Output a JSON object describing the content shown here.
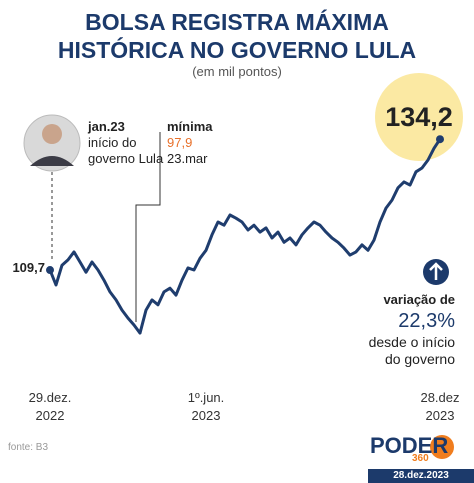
{
  "chart_data": {
    "type": "line",
    "title": "BOLSA REGISTRA MÁXIMA\nHISTÓRICA NO GOVERNO LULA",
    "subtitle": "(em mil pontos)",
    "categories": [
      "29.dez.\n2022",
      null,
      null,
      null,
      null,
      null,
      null,
      null,
      null,
      null,
      null,
      null,
      null,
      null,
      null,
      null,
      null,
      null,
      null,
      null,
      null,
      null,
      null,
      null,
      null,
      null,
      "1º.jun.\n2023",
      null,
      null,
      null,
      null,
      null,
      null,
      null,
      null,
      null,
      null,
      null,
      null,
      null,
      null,
      null,
      null,
      null,
      null,
      null,
      null,
      null,
      null,
      null,
      null,
      null,
      null,
      null,
      null,
      null,
      null,
      null,
      null,
      null,
      null,
      null,
      null,
      null,
      null,
      "28.dez\n2023"
    ],
    "values": [
      109.7,
      106.9,
      110.6,
      111.6,
      113.1,
      111.2,
      109.3,
      111.2,
      109.7,
      107.8,
      105.6,
      104.1,
      102.2,
      100.7,
      99.4,
      97.9,
      102.2,
      104.1,
      103.2,
      105.6,
      106.3,
      105.0,
      107.8,
      110.1,
      109.7,
      111.9,
      113.4,
      116.3,
      118.7,
      118.1,
      120.0,
      119.4,
      118.7,
      117.2,
      118.1,
      116.8,
      117.6,
      115.7,
      116.8,
      114.9,
      115.7,
      114.4,
      116.3,
      117.6,
      118.7,
      118.1,
      116.8,
      115.7,
      114.9,
      113.8,
      112.5,
      113.1,
      114.4,
      113.4,
      115.3,
      118.7,
      121.3,
      122.8,
      125.1,
      126.2,
      125.6,
      128.1,
      128.8,
      130.3,
      132.5,
      134.2
    ],
    "value_labels": [
      "109,7",
      null,
      null,
      null,
      null,
      null,
      null,
      null,
      null,
      null,
      null,
      null,
      null,
      null,
      null,
      "97,9",
      null,
      null,
      null,
      null,
      null,
      null,
      null,
      null,
      null,
      null,
      null,
      null,
      null,
      null,
      null,
      null,
      null,
      null,
      null,
      null,
      null,
      null,
      null,
      null,
      null,
      null,
      null,
      null,
      null,
      null,
      null,
      null,
      null,
      null,
      null,
      null,
      null,
      null,
      null,
      null,
      null,
      null,
      null,
      null,
      null,
      null,
      null,
      null,
      null,
      "134,2"
    ],
    "color": "#1f3d6e",
    "ylim": [
      96,
      136
    ],
    "annotations": {
      "start_title": "jan.23",
      "start_text": "início do\ngoverno Lula",
      "min_title": "mínima",
      "min_date": "23.mar",
      "change_title": "variação de",
      "change_value": "22,3%",
      "change_text": "desde o início\ndo governo"
    },
    "source": "fonte: B3",
    "brand": "PODER",
    "brand_number": "360",
    "date": "28.dez.2023"
  }
}
